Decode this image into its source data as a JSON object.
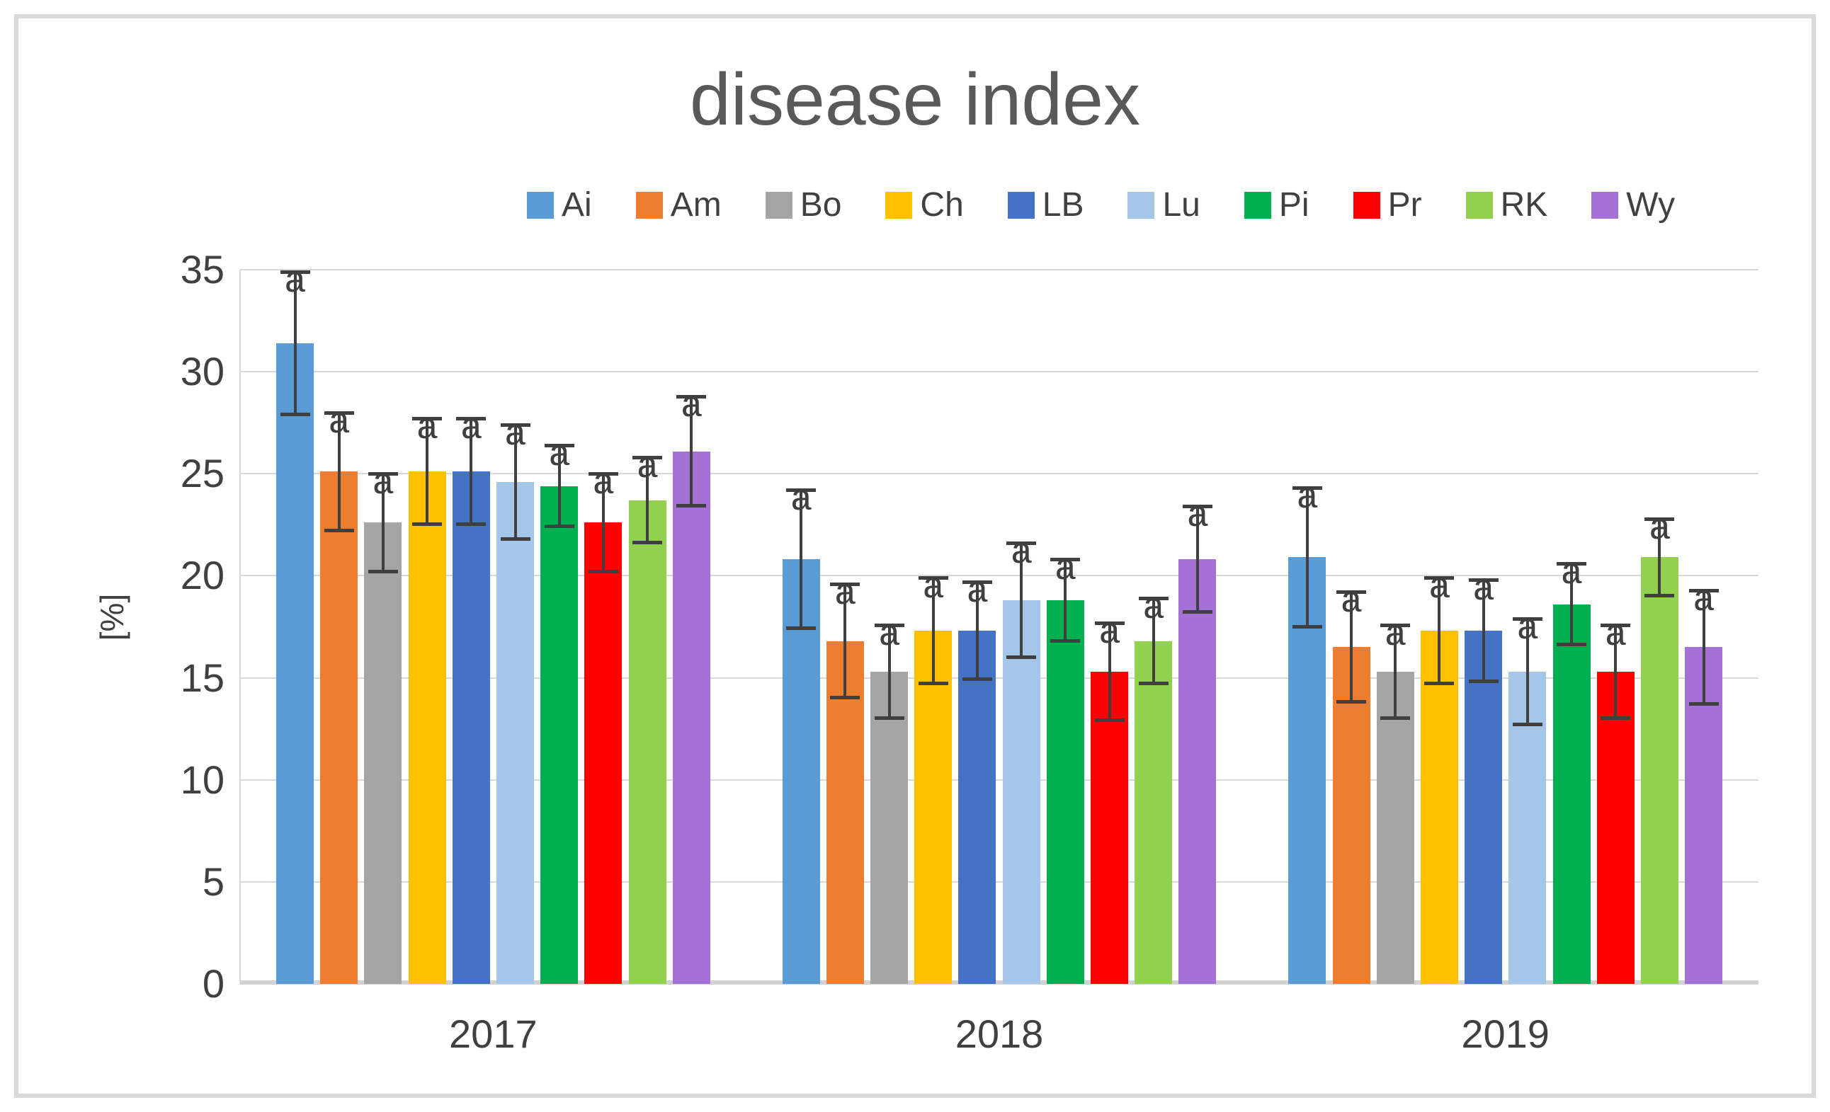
{
  "figure": {
    "title": "disease index"
  },
  "colors": {
    "title_text": "#595959",
    "axis_text": "#404040",
    "gridline": "#D9D9D9",
    "zero_axis_line": "#D2D2D2",
    "error_bar": "#3F3F3F",
    "frame_border": "#D9D9D9",
    "background": "#FFFFFF"
  },
  "chart_data": {
    "type": "bar",
    "title": "disease index",
    "xlabel": "",
    "ylabel": "[%]",
    "categories": [
      "2017",
      "2018",
      "2019"
    ],
    "ylim": [
      0,
      35
    ],
    "yticks": [
      0,
      5,
      10,
      15,
      20,
      25,
      30,
      35
    ],
    "grid": true,
    "legend_position": "top",
    "error_bars": true,
    "series": [
      {
        "name": "Ai",
        "color": "#5B9BD5",
        "values": [
          31.4,
          20.8,
          20.9
        ],
        "errors": [
          3.5,
          3.4,
          3.4
        ],
        "labels": [
          "a",
          "a",
          "a"
        ]
      },
      {
        "name": "Am",
        "color": "#ED7D31",
        "values": [
          25.1,
          16.8,
          16.5
        ],
        "errors": [
          2.9,
          2.8,
          2.7
        ],
        "labels": [
          "a",
          "a",
          "a"
        ]
      },
      {
        "name": "Bo",
        "color": "#A5A5A5",
        "values": [
          22.6,
          15.3,
          15.3
        ],
        "errors": [
          2.4,
          2.3,
          2.3
        ],
        "labels": [
          "a",
          "a",
          "a"
        ]
      },
      {
        "name": "Ch",
        "color": "#FFC000",
        "values": [
          25.1,
          17.3,
          17.3
        ],
        "errors": [
          2.6,
          2.6,
          2.6
        ],
        "labels": [
          "a",
          "a",
          "a"
        ]
      },
      {
        "name": "LB",
        "color": "#4472C4",
        "values": [
          25.1,
          17.3,
          17.3
        ],
        "errors": [
          2.6,
          2.4,
          2.5
        ],
        "labels": [
          "a",
          "a",
          "a"
        ]
      },
      {
        "name": "Lu",
        "color": "#A4C6E8",
        "values": [
          24.6,
          18.8,
          15.3
        ],
        "errors": [
          2.8,
          2.8,
          2.6
        ],
        "labels": [
          "a",
          "a",
          "a"
        ]
      },
      {
        "name": "Pi",
        "color": "#00B050",
        "values": [
          24.4,
          18.8,
          18.6
        ],
        "errors": [
          2.0,
          2.0,
          2.0
        ],
        "labels": [
          "a",
          "a",
          "a"
        ]
      },
      {
        "name": "Pr",
        "color": "#FF0000",
        "values": [
          22.6,
          15.3,
          15.3
        ],
        "errors": [
          2.4,
          2.4,
          2.3
        ],
        "labels": [
          "a",
          "a",
          "a"
        ]
      },
      {
        "name": "RK",
        "color": "#92D050",
        "values": [
          23.7,
          16.8,
          20.9
        ],
        "errors": [
          2.1,
          2.1,
          1.9
        ],
        "labels": [
          "a",
          "a",
          "a"
        ]
      },
      {
        "name": "Wy",
        "color": "#A571D6",
        "values": [
          26.1,
          20.8,
          16.5
        ],
        "errors": [
          2.7,
          2.6,
          2.8
        ],
        "labels": [
          "a",
          "a",
          "a"
        ]
      }
    ]
  }
}
